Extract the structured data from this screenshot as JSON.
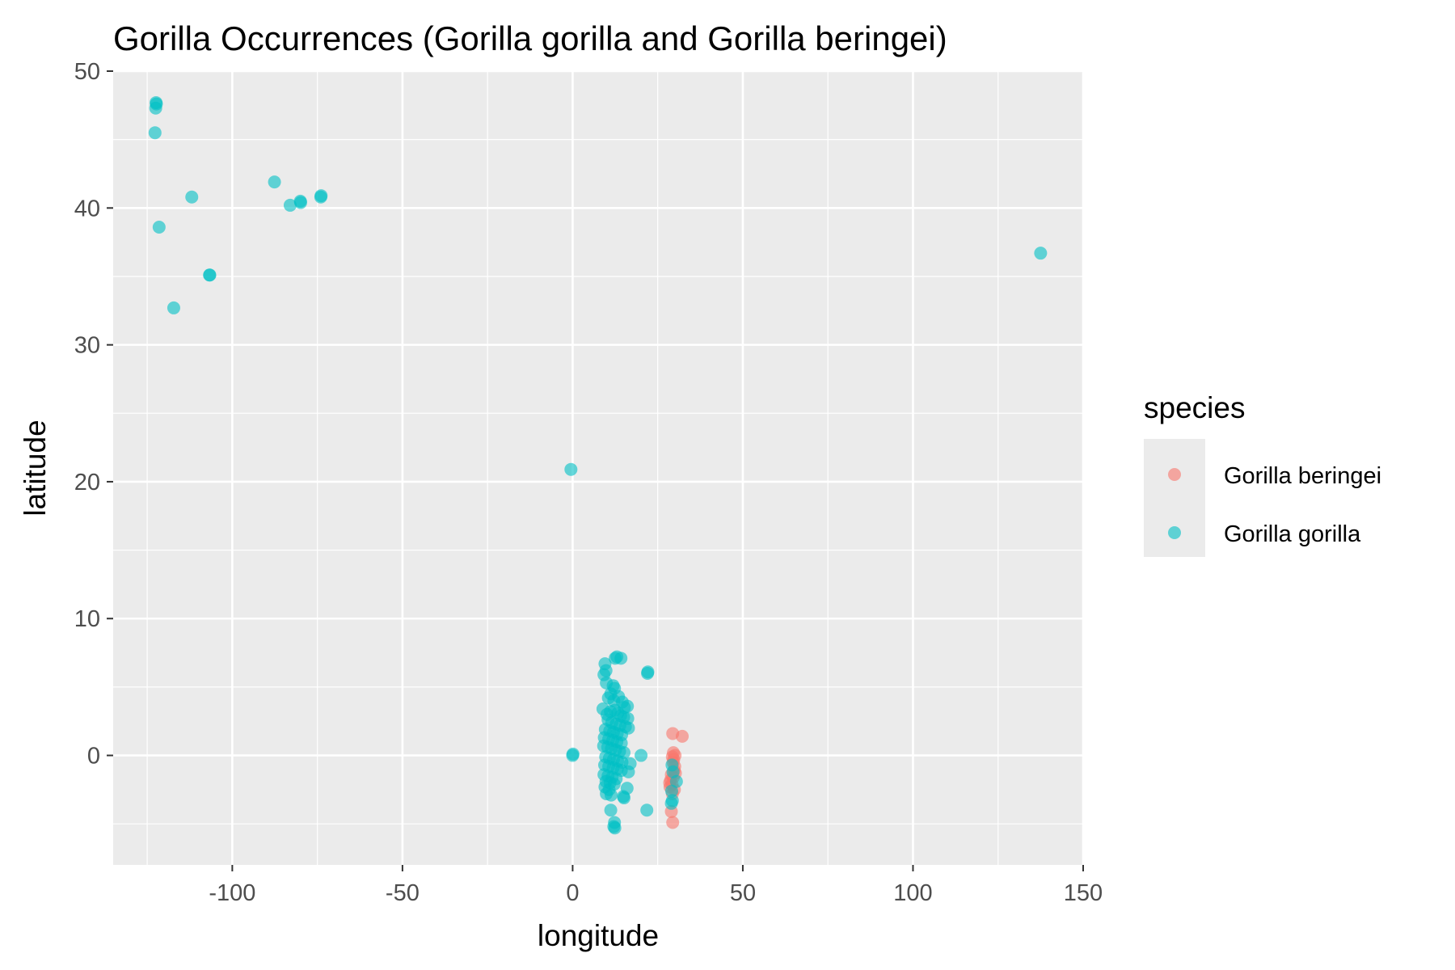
{
  "chart_data": {
    "type": "scatter",
    "title": "Gorilla Occurrences (Gorilla gorilla and Gorilla beringei)",
    "xlabel": "longitude",
    "ylabel": "latitude",
    "xlim": [
      -135,
      150
    ],
    "ylim": [
      -8,
      50
    ],
    "x_ticks": [
      -100,
      -50,
      0,
      50,
      100,
      150
    ],
    "x_tick_labels": [
      "-100",
      "-50",
      "0",
      "50",
      "100",
      "150"
    ],
    "y_ticks": [
      0,
      10,
      20,
      30,
      40,
      50
    ],
    "y_tick_labels": [
      "0",
      "10",
      "20",
      "30",
      "40",
      "50"
    ],
    "grid": true,
    "point_opacity": 0.6,
    "legend": {
      "title": "species",
      "position": "right",
      "entries": [
        "Gorilla beringei",
        "Gorilla gorilla"
      ]
    },
    "series": [
      {
        "name": "Gorilla beringei",
        "color": "#F8766D",
        "points": [
          [
            29.4,
            1.6
          ],
          [
            32.2,
            1.4
          ],
          [
            29.6,
            0.2
          ],
          [
            29.3,
            -0.1
          ],
          [
            30.1,
            0.0
          ],
          [
            29.5,
            -0.5
          ],
          [
            30.0,
            -0.8
          ],
          [
            29.8,
            -1.1
          ],
          [
            30.2,
            -1.3
          ],
          [
            29.0,
            -1.4
          ],
          [
            29.6,
            -1.6
          ],
          [
            28.8,
            -1.8
          ],
          [
            28.5,
            -2.0
          ],
          [
            29.2,
            -2.1
          ],
          [
            28.6,
            -2.3
          ],
          [
            29.9,
            -2.5
          ],
          [
            29.3,
            -2.8
          ],
          [
            29.0,
            -4.1
          ],
          [
            29.4,
            -4.9
          ],
          [
            29.7,
            -0.3
          ]
        ]
      },
      {
        "name": "Gorilla gorilla",
        "color": "#00BFC4",
        "points": [
          [
            -122.3,
            47.6
          ],
          [
            -122.4,
            47.7
          ],
          [
            -122.5,
            47.3
          ],
          [
            -122.7,
            45.5
          ],
          [
            -111.9,
            40.8
          ],
          [
            -121.5,
            38.6
          ],
          [
            -106.6,
            35.1
          ],
          [
            -106.7,
            35.1
          ],
          [
            -117.2,
            32.7
          ],
          [
            -87.6,
            41.9
          ],
          [
            -83.0,
            40.2
          ],
          [
            -80.0,
            40.5
          ],
          [
            -79.9,
            40.4
          ],
          [
            -73.9,
            40.9
          ],
          [
            -74.0,
            40.8
          ],
          [
            137.5,
            36.7
          ],
          [
            -0.5,
            20.9
          ],
          [
            0.1,
            0.1
          ],
          [
            0.0,
            0.0
          ],
          [
            9.5,
            6.7
          ],
          [
            9.8,
            6.2
          ],
          [
            9.2,
            5.9
          ],
          [
            13.0,
            7.2
          ],
          [
            14.2,
            7.1
          ],
          [
            12.5,
            7.1
          ],
          [
            22.0,
            6.0
          ],
          [
            22.1,
            6.1
          ],
          [
            11.9,
            5.1
          ],
          [
            12.3,
            4.9
          ],
          [
            9.9,
            5.3
          ],
          [
            10.5,
            4.2
          ],
          [
            11.2,
            4.5
          ],
          [
            12.1,
            4.0
          ],
          [
            13.5,
            4.3
          ],
          [
            14.6,
            3.9
          ],
          [
            15.2,
            3.5
          ],
          [
            16.1,
            3.6
          ],
          [
            8.9,
            3.4
          ],
          [
            10.1,
            3.0
          ],
          [
            11.1,
            3.2
          ],
          [
            12.4,
            3.3
          ],
          [
            13.3,
            3.1
          ],
          [
            14.1,
            2.9
          ],
          [
            15.0,
            2.8
          ],
          [
            16.2,
            2.7
          ],
          [
            10.4,
            2.6
          ],
          [
            11.5,
            2.4
          ],
          [
            12.8,
            2.3
          ],
          [
            13.9,
            2.2
          ],
          [
            15.5,
            2.1
          ],
          [
            16.4,
            2.0
          ],
          [
            9.6,
            1.9
          ],
          [
            10.9,
            1.8
          ],
          [
            12.0,
            1.7
          ],
          [
            13.1,
            1.6
          ],
          [
            14.4,
            1.5
          ],
          [
            9.3,
            1.3
          ],
          [
            10.6,
            1.2
          ],
          [
            11.8,
            1.1
          ],
          [
            13.0,
            1.0
          ],
          [
            14.3,
            0.9
          ],
          [
            9.1,
            0.7
          ],
          [
            10.3,
            0.6
          ],
          [
            11.4,
            0.5
          ],
          [
            12.6,
            0.4
          ],
          [
            13.8,
            0.3
          ],
          [
            15.1,
            0.2
          ],
          [
            20.1,
            0.0
          ],
          [
            9.7,
            -0.1
          ],
          [
            10.8,
            -0.2
          ],
          [
            12.0,
            -0.3
          ],
          [
            13.2,
            -0.4
          ],
          [
            14.5,
            -0.5
          ],
          [
            9.4,
            -0.7
          ],
          [
            10.6,
            -0.8
          ],
          [
            11.9,
            -0.9
          ],
          [
            13.1,
            -1.0
          ],
          [
            14.3,
            -1.1
          ],
          [
            16.9,
            -0.6
          ],
          [
            16.4,
            -1.2
          ],
          [
            9.2,
            -1.4
          ],
          [
            10.4,
            -1.5
          ],
          [
            11.6,
            -1.6
          ],
          [
            12.8,
            -1.7
          ],
          [
            9.8,
            -1.9
          ],
          [
            11.0,
            -2.0
          ],
          [
            12.2,
            -2.1
          ],
          [
            9.5,
            -2.3
          ],
          [
            10.7,
            -2.5
          ],
          [
            16.0,
            -2.4
          ],
          [
            9.9,
            -2.8
          ],
          [
            11.3,
            -2.9
          ],
          [
            14.9,
            -3.0
          ],
          [
            15.1,
            -3.1
          ],
          [
            11.2,
            -4.0
          ],
          [
            21.8,
            -4.0
          ],
          [
            12.3,
            -4.9
          ],
          [
            12.1,
            -5.2
          ],
          [
            12.4,
            -5.3
          ],
          [
            29.2,
            -0.7
          ],
          [
            29.5,
            -1.2
          ],
          [
            29.1,
            -2.6
          ],
          [
            29.3,
            -3.3
          ],
          [
            30.5,
            -1.9
          ],
          [
            29.0,
            -3.5
          ]
        ]
      }
    ]
  }
}
